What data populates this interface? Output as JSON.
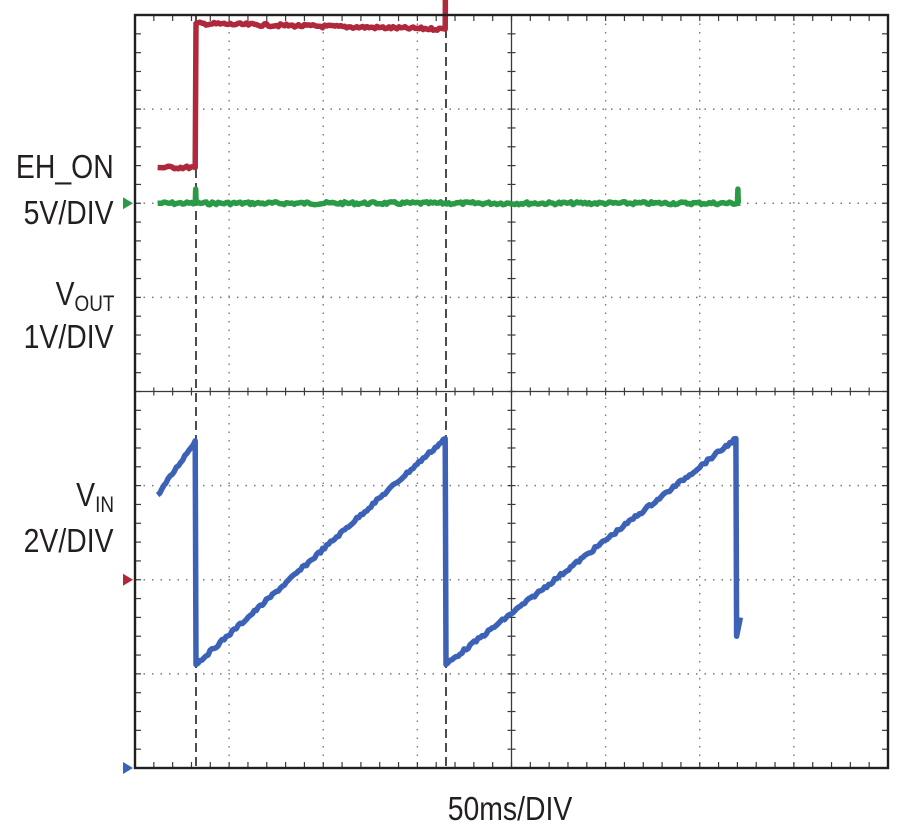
{
  "chart_data": {
    "type": "line",
    "title": "",
    "time_base": "50ms/DIV",
    "xlabel": "50ms/DIV",
    "x_unit": "ms",
    "xlim": [
      0,
      500
    ],
    "grid": true,
    "grid_divisions": {
      "x": 8,
      "y": 8
    },
    "markers_ms": [
      40.5,
      206.5
    ],
    "channels": [
      {
        "name_main": "EH_ON",
        "name_sub": "",
        "scale": "5V/DIV",
        "color": "#2b9a47",
        "volts_per_div": 5,
        "ground_div": 6,
        "x": [
          15,
          40,
          40.3,
          40.6,
          400,
          400.3,
          400.6,
          402
        ],
        "y": [
          0,
          0,
          0.75,
          0,
          0,
          0.75,
          0,
          0
        ]
      },
      {
        "name_main": "V",
        "name_sub": "OUT",
        "scale": "1V/DIV",
        "color": "#b0283c",
        "volts_per_div": 1,
        "ground_div": 2,
        "x": [
          15,
          40,
          40.5,
          206,
          206.5,
          310,
          318,
          320,
          328,
          330,
          336,
          338,
          354,
          380,
          401,
          401.5,
          402
        ],
        "y": [
          4.38,
          4.38,
          5.91,
          5.85,
          7.3,
          7.2,
          7.05,
          6.92,
          6.8,
          6.68,
          6.55,
          6.45,
          6.45,
          6.45,
          6.45,
          6.9,
          6.9
        ]
      },
      {
        "name_main": "V",
        "name_sub": "IN",
        "scale": "2V/DIV",
        "color": "#3c62b8",
        "volts_per_div": 2,
        "ground_div": 0,
        "x": [
          15,
          40,
          40.5,
          206,
          206.5,
          399,
          399.5,
          402
        ],
        "y": [
          5.8,
          6.95,
          2.2,
          7.0,
          2.2,
          7.0,
          2.8,
          3.2
        ]
      }
    ]
  },
  "colors": {
    "grid": "#7a7a7a",
    "frame": "#231f20",
    "ground_marker_eh_on": "#2b9a47",
    "ground_marker_vout": "#b0283c",
    "ground_marker_vin": "#3c62b8"
  }
}
